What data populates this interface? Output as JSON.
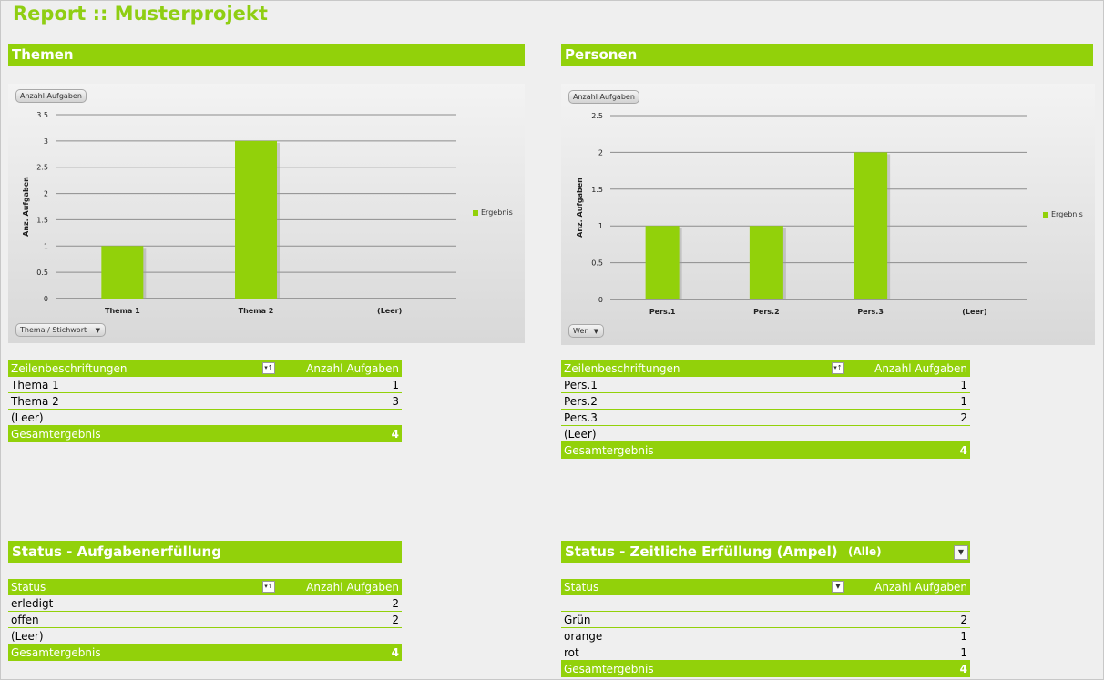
{
  "page": {
    "title": "Report :: Musterprojekt"
  },
  "colors": {
    "accent": "#92d10a",
    "title": "#8fce12",
    "background": "#efefef"
  },
  "sections": {
    "themen": "Themen",
    "personen": "Personen",
    "status_aufgaben": "Status - Aufgabenerfüllung",
    "status_ampel": "Status - Zeitliche Erfüllung (Ampel)",
    "status_ampel_filter": "(Alle)"
  },
  "chart_themen": {
    "value_field_button": "Anzahl Aufgaben",
    "axis_field_button": "Thema / Stichwort",
    "icons": {
      "axis_dropdown": "dropdown-arrow-icon"
    }
  },
  "chart_personen": {
    "value_field_button": "Anzahl Aufgaben",
    "axis_field_button": "Wer",
    "icons": {
      "axis_dropdown": "dropdown-arrow-icon"
    }
  },
  "chart_data": [
    {
      "type": "bar",
      "categories": [
        "Thema 1",
        "Thema 2",
        "(Leer)"
      ],
      "series": [
        {
          "name": "Ergebnis",
          "values": [
            1,
            3,
            0
          ]
        }
      ],
      "ylabel": "Anz. Aufgaben",
      "xlabel": "",
      "ylim": [
        0,
        3.5
      ],
      "yticks": [
        "0",
        "0.5",
        "1",
        "1.5",
        "2",
        "2.5",
        "3",
        "3.5"
      ],
      "grid": true,
      "legend": "right",
      "color": "#92d10a"
    },
    {
      "type": "bar",
      "categories": [
        "Pers.1",
        "Pers.2",
        "Pers.3",
        "(Leer)"
      ],
      "series": [
        {
          "name": "Ergebnis",
          "values": [
            1,
            1,
            2,
            0
          ]
        }
      ],
      "ylabel": "Anz. Aufgaben",
      "xlabel": "",
      "ylim": [
        0,
        2.5
      ],
      "yticks": [
        "0",
        "0.5",
        "1",
        "1.5",
        "2",
        "2.5"
      ],
      "grid": true,
      "legend": "right",
      "color": "#92d10a"
    }
  ],
  "pivot_themen": {
    "header_left": "Zeilenbeschriftungen",
    "header_right": "Anzahl Aufgaben",
    "rows": [
      {
        "label": "Thema 1",
        "value": "1"
      },
      {
        "label": "Thema 2",
        "value": "3"
      },
      {
        "label": "(Leer)",
        "value": ""
      }
    ],
    "total_label": "Gesamtergebnis",
    "total_value": "4",
    "icons": {
      "filter": "filter-sort-icon"
    }
  },
  "pivot_personen": {
    "header_left": "Zeilenbeschriftungen",
    "header_right": "Anzahl Aufgaben",
    "rows": [
      {
        "label": "Pers.1",
        "value": "1"
      },
      {
        "label": "Pers.2",
        "value": "1"
      },
      {
        "label": "Pers.3",
        "value": "2"
      },
      {
        "label": "(Leer)",
        "value": ""
      }
    ],
    "total_label": "Gesamtergebnis",
    "total_value": "4",
    "icons": {
      "filter": "filter-sort-icon"
    }
  },
  "pivot_status": {
    "header_left": "Status",
    "header_right": "Anzahl Aufgaben",
    "rows": [
      {
        "label": "erledigt",
        "value": "2"
      },
      {
        "label": "offen",
        "value": "2"
      },
      {
        "label": "(Leer)",
        "value": ""
      }
    ],
    "total_label": "Gesamtergebnis",
    "total_value": "4",
    "icons": {
      "filter": "filter-sort-icon"
    }
  },
  "pivot_ampel": {
    "header_left": "Status",
    "header_right": "Anzahl Aufgaben",
    "rows": [
      {
        "label": "",
        "value": ""
      },
      {
        "label": "Grün",
        "value": "2"
      },
      {
        "label": "orange",
        "value": "1"
      },
      {
        "label": "rot",
        "value": "1"
      }
    ],
    "total_label": "Gesamtergebnis",
    "total_value": "4",
    "icons": {
      "filter": "dropdown-arrow-icon",
      "header_filter": "dropdown-arrow-icon"
    }
  }
}
